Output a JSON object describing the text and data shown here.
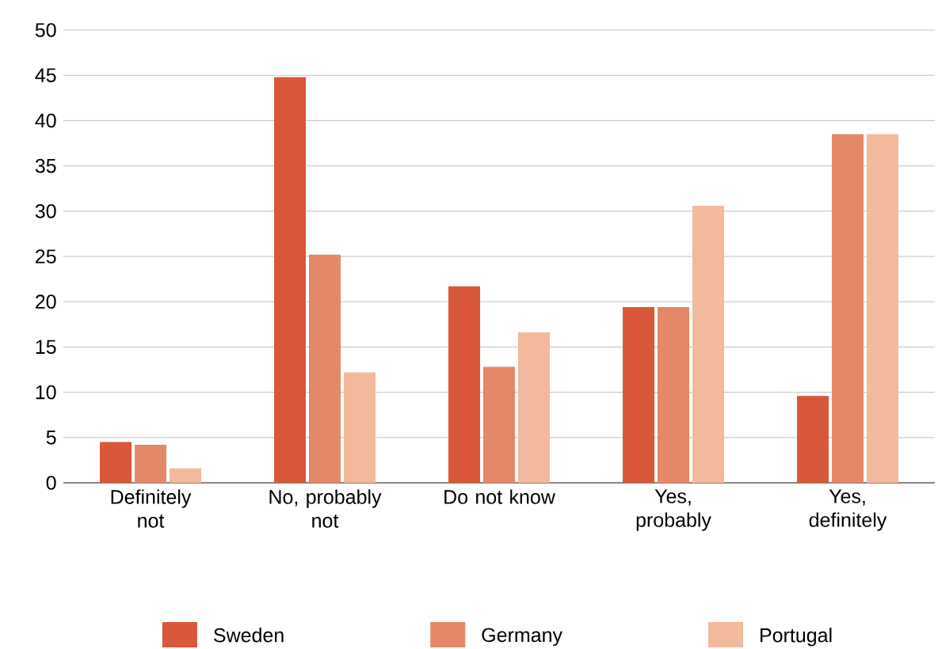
{
  "chart_data": {
    "type": "bar",
    "categories": [
      "Definitely not",
      "No, probably not",
      "Do not know",
      "Yes, probably",
      "Yes, definitely"
    ],
    "series": [
      {
        "name": "Sweden",
        "color": "#d9573a",
        "values": [
          4.5,
          44.8,
          21.7,
          19.4,
          9.6
        ]
      },
      {
        "name": "Germany",
        "color": "#e4886a",
        "values": [
          4.2,
          25.2,
          12.8,
          19.4,
          38.5
        ]
      },
      {
        "name": "Portugal",
        "color": "#f2b99c",
        "values": [
          1.6,
          12.2,
          16.6,
          30.6,
          38.5
        ]
      }
    ],
    "ylim": [
      0,
      50
    ],
    "yticks": [
      0,
      5,
      10,
      15,
      20,
      25,
      30,
      35,
      40,
      45,
      50
    ],
    "grid": "y",
    "legend": "bottom"
  }
}
